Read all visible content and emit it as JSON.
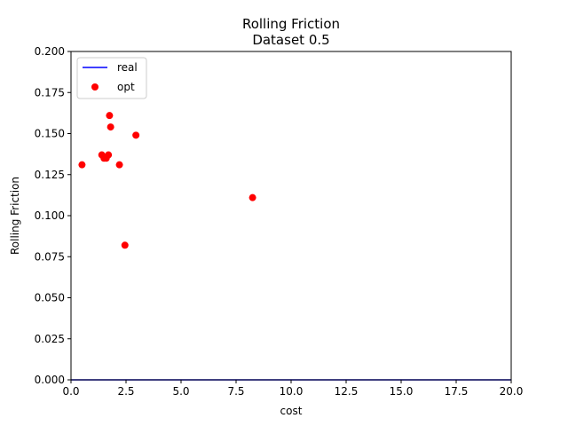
{
  "chart_data": {
    "type": "scatter",
    "title_lines": [
      "Rolling Friction",
      "Dataset 0.5"
    ],
    "xlabel": "cost",
    "ylabel": "Rolling Friction",
    "xlim": [
      0,
      20
    ],
    "ylim": [
      0,
      0.2
    ],
    "xticks": [
      "0.0",
      "2.5",
      "5.0",
      "7.5",
      "10.0",
      "12.5",
      "15.0",
      "17.5",
      "20.0"
    ],
    "yticks": [
      "0.000",
      "0.025",
      "0.050",
      "0.075",
      "0.100",
      "0.125",
      "0.150",
      "0.175",
      "0.200"
    ],
    "legend_location": "upper-left",
    "series": [
      {
        "name": "real",
        "kind": "line",
        "color": "#0000ff",
        "points": [
          [
            0,
            0
          ],
          [
            20,
            0
          ]
        ]
      },
      {
        "name": "opt",
        "kind": "scatter",
        "color": "#ff0000",
        "points": [
          [
            0.5,
            0.131
          ],
          [
            1.4,
            0.137
          ],
          [
            1.5,
            0.135
          ],
          [
            1.6,
            0.135
          ],
          [
            1.7,
            0.137
          ],
          [
            1.75,
            0.161
          ],
          [
            1.8,
            0.154
          ],
          [
            2.2,
            0.131
          ],
          [
            2.45,
            0.082
          ],
          [
            2.95,
            0.149
          ],
          [
            8.25,
            0.111
          ]
        ]
      }
    ]
  }
}
